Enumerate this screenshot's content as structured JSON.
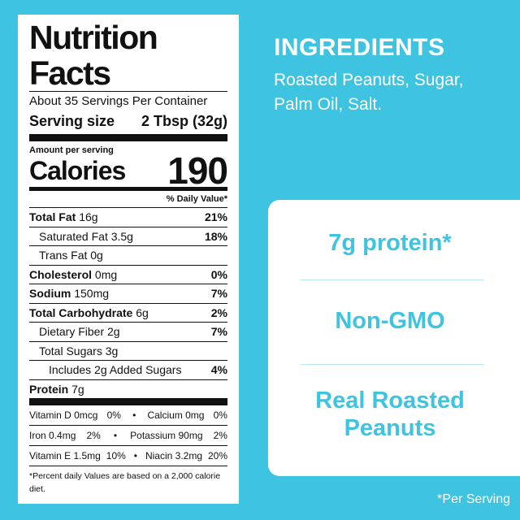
{
  "nutrition": {
    "title": "Nutrition Facts",
    "servings": "About 35 Servings Per Container",
    "serving_size_label": "Serving size",
    "serving_size_value": "2 Tbsp (32g)",
    "amount_per_serving": "Amount per serving",
    "calories_label": "Calories",
    "calories_value": "190",
    "dv_header": "% Daily Value*",
    "rows": [
      {
        "name": "Total Fat",
        "amount": "16g",
        "pct": "21%"
      },
      {
        "name": "Saturated Fat 3.5g",
        "pct": "18%"
      },
      {
        "name": "Trans Fat 0g",
        "pct": ""
      },
      {
        "name": "Cholesterol",
        "amount": "0mg",
        "pct": "0%"
      },
      {
        "name": "Sodium",
        "amount": "150mg",
        "pct": "7%"
      },
      {
        "name": "Total Carbohydrate",
        "amount": "6g",
        "pct": "2%"
      },
      {
        "name": "Dietary Fiber 2g",
        "pct": "7%"
      },
      {
        "name": "Total Sugars 3g",
        "pct": ""
      },
      {
        "name": "Includes 2g Added Sugars",
        "pct": "4%"
      },
      {
        "name": "Protein",
        "amount": "7g",
        "pct": ""
      }
    ],
    "vitamins": [
      {
        "left": "Vitamin D 0mcg",
        "left_pct": "0%",
        "right": "Calcium 0mg",
        "right_pct": "0%"
      },
      {
        "left": "Iron 0.4mg",
        "left_pct": "2%",
        "right": "Potassium 90mg",
        "right_pct": "2%"
      },
      {
        "left": "Vitamin E 1.5mg",
        "left_pct": "10%",
        "right": "Niacin 3.2mg",
        "right_pct": "20%"
      }
    ],
    "bullet": "•",
    "footnote": "*Percent daily Values are based on a 2,000 calorie diet."
  },
  "ingredients": {
    "title": "INGREDIENTS",
    "text_line1": "Roasted Peanuts, Sugar,",
    "text_line2": "Palm Oil, Salt."
  },
  "claims": {
    "protein": "7g protein*",
    "non_gmo": "Non-GMO",
    "real_line1": "Real Roasted",
    "real_line2": "Peanuts"
  },
  "per_serving": "*Per Serving",
  "colors": {
    "background": "#3ec4e0",
    "panel": "#ffffff",
    "text_dark": "#111111"
  }
}
